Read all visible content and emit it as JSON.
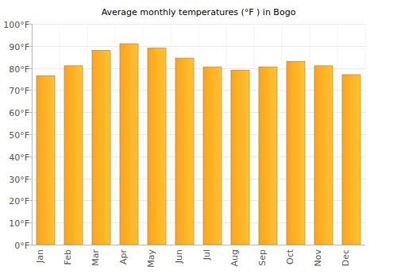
{
  "chart_data": {
    "type": "bar",
    "title": "Average monthly temperatures (°F ) in Bogo",
    "categories": [
      "Jan",
      "Feb",
      "Mar",
      "Apr",
      "May",
      "Jun",
      "Jul",
      "Aug",
      "Sep",
      "Oct",
      "Nov",
      "Dec"
    ],
    "values": [
      76.5,
      81,
      88,
      91,
      89,
      84.5,
      80.5,
      79,
      80.5,
      83,
      81,
      77
    ],
    "color": "#ffa31a",
    "ylim": [
      0,
      100
    ],
    "yticks": [
      {
        "value": 0,
        "label": "0°F"
      },
      {
        "value": 10,
        "label": "10°F"
      },
      {
        "value": 20,
        "label": "20°F"
      },
      {
        "value": 30,
        "label": "30°F"
      },
      {
        "value": 40,
        "label": "40°F"
      },
      {
        "value": 50,
        "label": "50°F"
      },
      {
        "value": 60,
        "label": "60°F"
      },
      {
        "value": 70,
        "label": "70°F"
      },
      {
        "value": 80,
        "label": "80°F"
      },
      {
        "value": 90,
        "label": "90°F"
      },
      {
        "value": 100,
        "label": "100°F"
      }
    ],
    "grid": true
  }
}
